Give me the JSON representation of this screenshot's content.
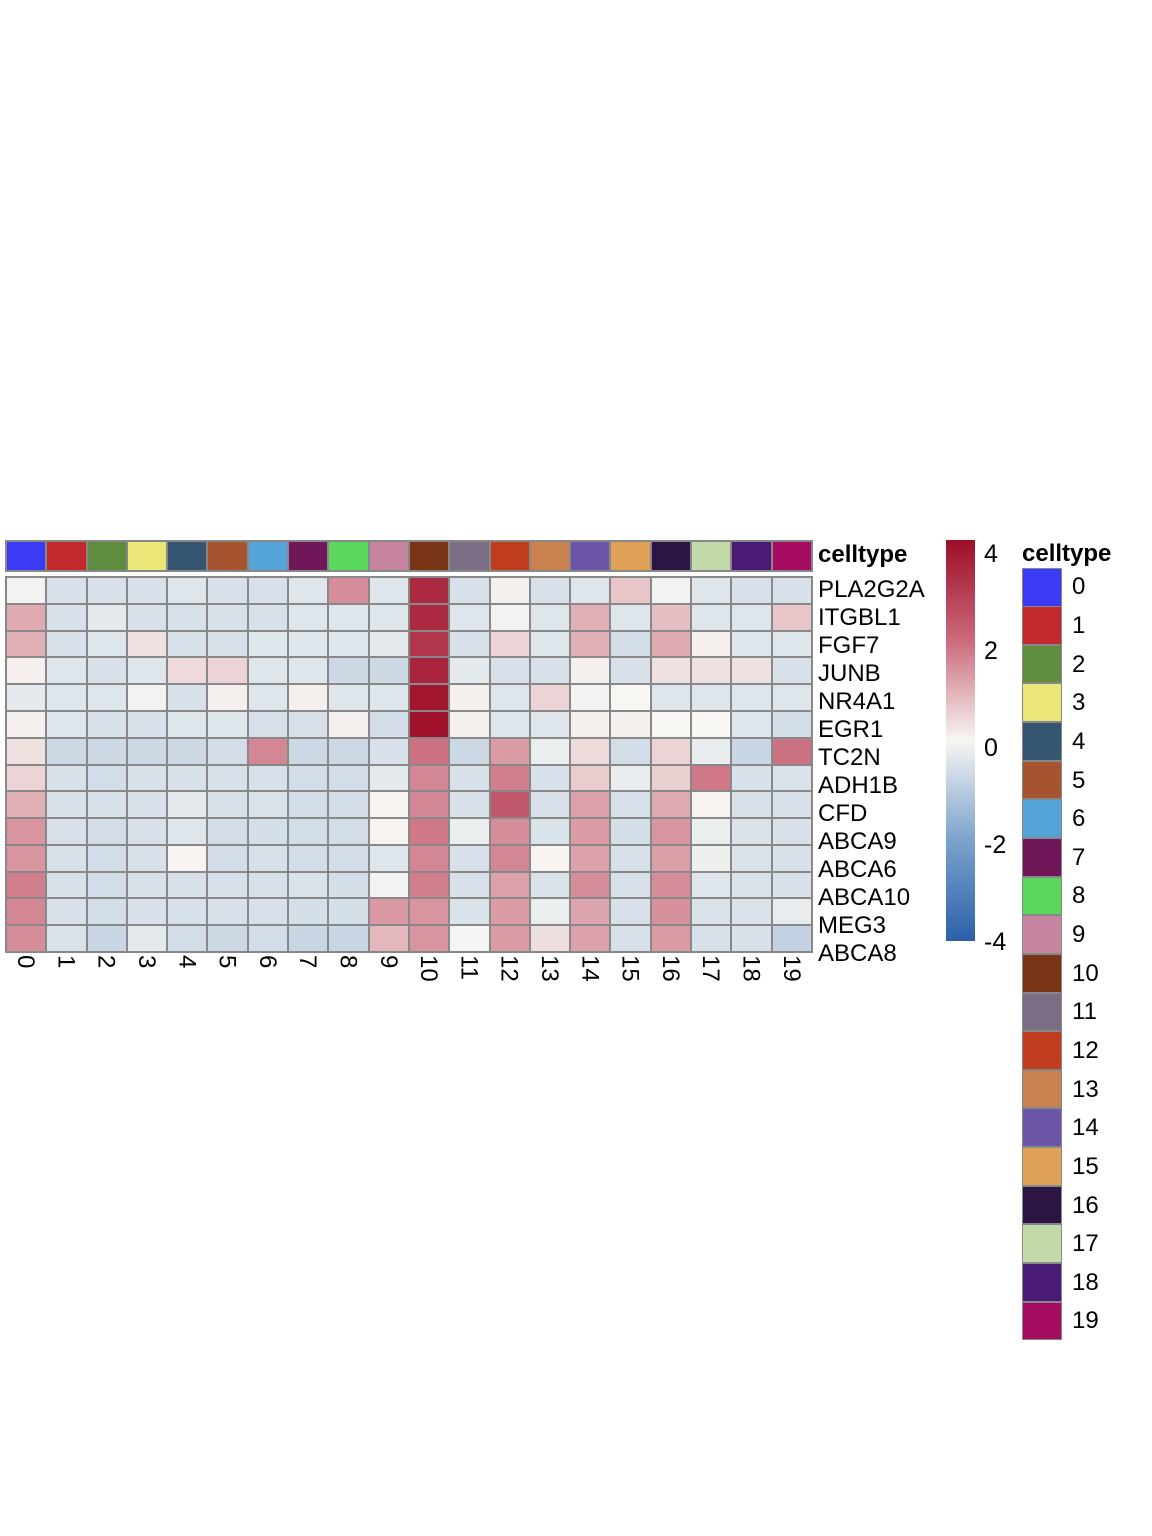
{
  "chart_data": {
    "type": "heatmap",
    "description": "Gene expression heatmap (scaled expression) of marker genes across 20 celltype clusters",
    "genes": [
      "PLA2G2A",
      "ITGBL1",
      "FGF7",
      "JUNB",
      "NR4A1",
      "EGR1",
      "TC2N",
      "ADH1B",
      "CFD",
      "ABCA9",
      "ABCA6",
      "ABCA10",
      "MEG3",
      "ABCA8"
    ],
    "celltypes": [
      "0",
      "1",
      "2",
      "3",
      "4",
      "5",
      "6",
      "7",
      "8",
      "9",
      "10",
      "11",
      "12",
      "13",
      "14",
      "15",
      "16",
      "17",
      "18",
      "19"
    ],
    "values": [
      [
        -0.1,
        -0.5,
        -0.5,
        -0.5,
        -0.4,
        -0.5,
        -0.5,
        -0.4,
        1.5,
        -0.4,
        3.4,
        -0.5,
        0.1,
        -0.5,
        -0.4,
        0.7,
        -0.1,
        -0.4,
        -0.5,
        -0.5
      ],
      [
        1.1,
        -0.5,
        -0.3,
        -0.5,
        -0.5,
        -0.5,
        -0.5,
        -0.4,
        -0.4,
        -0.4,
        3.4,
        -0.4,
        -0.1,
        -0.4,
        1.0,
        -0.4,
        0.8,
        -0.4,
        -0.4,
        0.7
      ],
      [
        1.0,
        -0.5,
        -0.4,
        0.3,
        -0.5,
        -0.5,
        -0.4,
        -0.4,
        -0.4,
        -0.3,
        3.1,
        -0.5,
        0.5,
        -0.4,
        1.0,
        -0.6,
        1.1,
        0.1,
        -0.4,
        -0.4
      ],
      [
        0.1,
        -0.4,
        -0.5,
        -0.4,
        0.4,
        0.5,
        -0.4,
        -0.4,
        -0.7,
        -0.7,
        3.5,
        -0.3,
        -0.5,
        -0.5,
        0.1,
        -0.5,
        0.3,
        0.3,
        0.3,
        -0.5
      ],
      [
        -0.3,
        -0.4,
        -0.4,
        -0.1,
        -0.5,
        0.1,
        -0.4,
        0.1,
        -0.4,
        -0.4,
        3.8,
        0.1,
        -0.4,
        0.5,
        -0.1,
        0.0,
        -0.4,
        -0.4,
        -0.4,
        -0.4
      ],
      [
        0.1,
        -0.4,
        -0.5,
        -0.5,
        -0.4,
        -0.4,
        -0.5,
        -0.5,
        0.1,
        -0.6,
        3.9,
        0.1,
        -0.4,
        -0.4,
        0.1,
        0.1,
        0.0,
        0.0,
        -0.4,
        -0.6
      ],
      [
        0.3,
        -0.7,
        -0.7,
        -0.7,
        -0.7,
        -0.6,
        1.6,
        -0.7,
        -0.7,
        -0.5,
        1.9,
        -0.7,
        1.3,
        -0.2,
        0.4,
        -0.6,
        0.5,
        -0.25,
        -0.75,
        1.9
      ],
      [
        0.5,
        -0.5,
        -0.6,
        -0.5,
        -0.5,
        -0.5,
        -0.5,
        -0.6,
        -0.6,
        -0.3,
        1.6,
        -0.5,
        1.7,
        -0.5,
        0.6,
        -0.25,
        0.55,
        1.8,
        -0.5,
        -0.45
      ],
      [
        1.0,
        -0.5,
        -0.5,
        -0.5,
        -0.3,
        -0.5,
        -0.45,
        -0.6,
        -0.6,
        0.05,
        1.6,
        -0.5,
        2.4,
        -0.5,
        1.2,
        -0.5,
        1.1,
        0.05,
        -0.5,
        -0.5
      ],
      [
        1.4,
        -0.5,
        -0.6,
        -0.5,
        -0.4,
        -0.6,
        -0.55,
        -0.6,
        -0.6,
        0.05,
        1.8,
        -0.2,
        1.5,
        -0.45,
        1.3,
        -0.55,
        1.4,
        -0.2,
        -0.45,
        -0.5
      ],
      [
        1.4,
        -0.5,
        -0.6,
        -0.5,
        0.05,
        -0.6,
        -0.5,
        -0.6,
        -0.6,
        -0.4,
        1.6,
        -0.5,
        1.6,
        0.05,
        1.2,
        -0.5,
        1.25,
        -0.15,
        -0.45,
        -0.5
      ],
      [
        1.7,
        -0.5,
        -0.6,
        -0.5,
        -0.5,
        -0.5,
        -0.5,
        -0.45,
        -0.55,
        -0.1,
        1.7,
        -0.5,
        1.2,
        -0.45,
        1.5,
        -0.5,
        1.5,
        -0.4,
        -0.45,
        -0.5
      ],
      [
        1.6,
        -0.5,
        -0.6,
        -0.5,
        -0.5,
        -0.5,
        -0.5,
        -0.55,
        -0.55,
        1.35,
        1.4,
        -0.45,
        1.3,
        -0.2,
        1.15,
        -0.5,
        1.45,
        -0.45,
        -0.45,
        -0.25
      ],
      [
        1.5,
        -0.45,
        -0.75,
        -0.3,
        -0.6,
        -0.7,
        -0.6,
        -0.75,
        -0.75,
        0.9,
        1.4,
        -0.05,
        1.3,
        0.35,
        1.2,
        -0.5,
        1.3,
        -0.5,
        -0.5,
        -0.85
      ]
    ],
    "value_range": [
      -4,
      4
    ],
    "colorbar_ticks": [
      "4",
      "2",
      "0",
      "-2",
      "-4"
    ],
    "colormap_stops": [
      {
        "v": -4,
        "c": "#2b60a9"
      },
      {
        "v": -2,
        "c": "#7ba2cc"
      },
      {
        "v": 0,
        "c": "#f7f6f3"
      },
      {
        "v": 2,
        "c": "#ca6a7b"
      },
      {
        "v": 4,
        "c": "#9e0d28"
      }
    ],
    "grid_line_color": "#888888",
    "annotation": {
      "label": "celltype",
      "colors": [
        "#3b3af4",
        "#c1292d",
        "#5f8c3e",
        "#ebe678",
        "#365570",
        "#a65430",
        "#54a3d9",
        "#6f1758",
        "#5bd75b",
        "#c784a0",
        "#7a3517",
        "#7a6d84",
        "#c03c1e",
        "#c98150",
        "#6b55a7",
        "#dfa156",
        "#2c1545",
        "#c1daa7",
        "#491b77",
        "#a50b5e"
      ]
    },
    "legend": {
      "title": "celltype"
    }
  }
}
